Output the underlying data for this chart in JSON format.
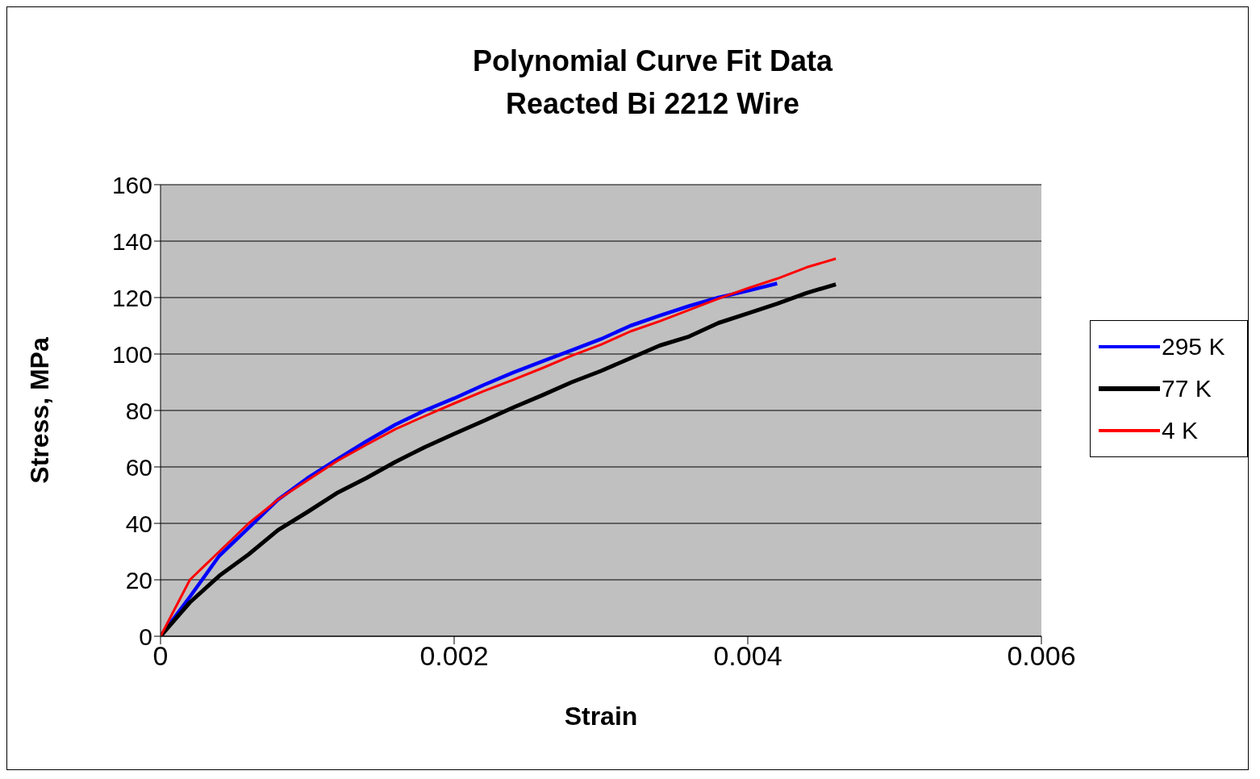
{
  "chart_data": {
    "type": "line",
    "title": "Polynomial Curve Fit Data",
    "subtitle": "Reacted Bi 2212 Wire",
    "xlabel": "Strain",
    "ylabel": "Stress, MPa",
    "xlim": [
      0,
      0.006
    ],
    "xticks": [
      0,
      0.002,
      0.004,
      0.006
    ],
    "ylim": [
      0,
      160
    ],
    "yticks": [
      0,
      20,
      40,
      60,
      80,
      100,
      120,
      140,
      160
    ],
    "grid": "y",
    "legend": "right",
    "marker": "none",
    "line_style": "solid",
    "series": [
      {
        "name": "295 K",
        "color": "#0000ff",
        "x": [
          0,
          0.0002,
          0.0004,
          0.0006,
          0.0008,
          0.001,
          0.0012,
          0.0014,
          0.0016,
          0.0018,
          0.002,
          0.0022,
          0.0024,
          0.0026,
          0.0028,
          0.003,
          0.0032,
          0.0034,
          0.0036,
          0.0038,
          0.004,
          0.0042
        ],
        "values": [
          0,
          14,
          28.5,
          38.4,
          48.4,
          56,
          62.6,
          69,
          75,
          80,
          84.3,
          89,
          93.4,
          97.4,
          101.3,
          105.3,
          110,
          113.6,
          117,
          120,
          122.4,
          125
        ]
      },
      {
        "name": "77 K",
        "color": "#000000",
        "x": [
          0,
          0.0002,
          0.0004,
          0.0006,
          0.0008,
          0.001,
          0.0012,
          0.0014,
          0.0016,
          0.0018,
          0.002,
          0.0022,
          0.0024,
          0.0026,
          0.0028,
          0.003,
          0.0032,
          0.0034,
          0.0036,
          0.0038,
          0.004,
          0.0042,
          0.0044,
          0.0046
        ],
        "values": [
          0,
          12,
          21.4,
          29,
          37.6,
          44,
          50.7,
          56,
          61.8,
          67,
          71.7,
          76.3,
          81,
          85.4,
          90,
          94,
          98.5,
          103,
          106.2,
          111,
          114.4,
          117.8,
          121.6,
          124.7
        ]
      },
      {
        "name": "4 K",
        "color": "#ff0000",
        "x": [
          0,
          0.0002,
          0.0004,
          0.0006,
          0.0008,
          0.001,
          0.0012,
          0.0014,
          0.0016,
          0.0018,
          0.002,
          0.0022,
          0.0024,
          0.0026,
          0.0028,
          0.003,
          0.0032,
          0.0034,
          0.0036,
          0.0038,
          0.004,
          0.0042,
          0.0044,
          0.0046
        ],
        "values": [
          0,
          20,
          30,
          40,
          48.4,
          55.2,
          62,
          67.8,
          73.4,
          78,
          82.5,
          86.8,
          90.8,
          95,
          99.4,
          103.3,
          108,
          111.6,
          115.6,
          119.6,
          123.3,
          126.7,
          130.7,
          133.8
        ]
      }
    ]
  }
}
